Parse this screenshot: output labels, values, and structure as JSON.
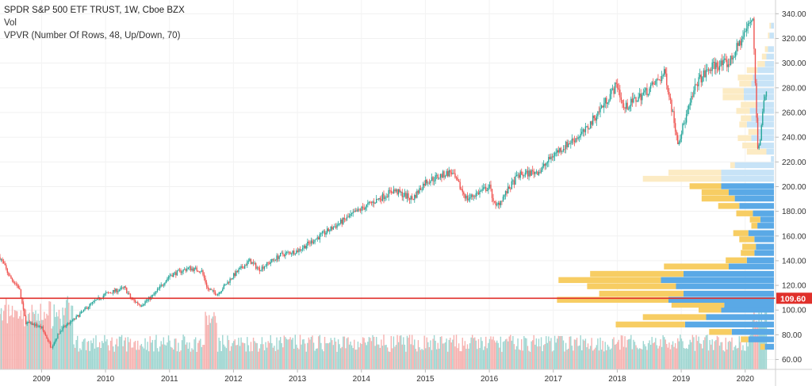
{
  "legend": {
    "title": "SPDR S&P 500 ETF TRUST, 1W, Cboe BZX",
    "volume": "Vol",
    "vpvr": "VPVR (Number Of Rows, 48, Up/Down, 70)"
  },
  "colors": {
    "up": "#26a69a",
    "down": "#ef5350",
    "vol_up": "#9fd6d1",
    "vol_down": "#f6b2b0",
    "vpvr_up": "#5aa9e6",
    "vpvr_down": "#f7cd63",
    "vpvr_up_light": "#c7e3f7",
    "vpvr_down_light": "#fcebc4",
    "price_line": "#e0302b"
  },
  "price_line": {
    "value": 109.6,
    "label": "109.60"
  },
  "chart_data": {
    "type": "candlestick",
    "title": "SPDR S&P 500 ETF TRUST, 1W, Cboe BZX",
    "y_ticks": [
      60,
      80,
      100,
      120,
      140,
      160,
      180,
      200,
      220,
      240,
      260,
      280,
      300,
      320,
      340
    ],
    "y_tick_labels": [
      "60.00",
      "80.00",
      "100.00",
      "120.00",
      "140.00",
      "160.00",
      "180.00",
      "200.00",
      "220.00",
      "240.00",
      "260.00",
      "280.00",
      "300.00",
      "320.00",
      "340.00"
    ],
    "x_ticks": [
      "2009",
      "2010",
      "2011",
      "2012",
      "2013",
      "2014",
      "2015",
      "2016",
      "2017",
      "2018",
      "2019",
      "2020"
    ],
    "x_range": [
      2008.35,
      2020.35
    ],
    "ylim": [
      52,
      346
    ],
    "price_path": [
      [
        2008.35,
        143
      ],
      [
        2008.5,
        127
      ],
      [
        2008.65,
        118
      ],
      [
        2008.75,
        90
      ],
      [
        2008.9,
        88
      ],
      [
        2009.0,
        86
      ],
      [
        2009.15,
        70
      ],
      [
        2009.3,
        84
      ],
      [
        2009.5,
        92
      ],
      [
        2009.75,
        104
      ],
      [
        2010.0,
        113
      ],
      [
        2010.3,
        118
      ],
      [
        2010.4,
        109
      ],
      [
        2010.55,
        104
      ],
      [
        2010.75,
        112
      ],
      [
        2011.0,
        128
      ],
      [
        2011.3,
        134
      ],
      [
        2011.5,
        132
      ],
      [
        2011.6,
        117
      ],
      [
        2011.75,
        113
      ],
      [
        2012.0,
        128
      ],
      [
        2012.25,
        140
      ],
      [
        2012.4,
        133
      ],
      [
        2012.75,
        145
      ],
      [
        2013.0,
        148
      ],
      [
        2013.5,
        165
      ],
      [
        2014.0,
        182
      ],
      [
        2014.5,
        197
      ],
      [
        2014.8,
        190
      ],
      [
        2015.0,
        204
      ],
      [
        2015.4,
        212
      ],
      [
        2015.65,
        190
      ],
      [
        2016.0,
        200
      ],
      [
        2016.1,
        183
      ],
      [
        2016.45,
        209
      ],
      [
        2016.8,
        213
      ],
      [
        2017.0,
        226
      ],
      [
        2017.5,
        245
      ],
      [
        2018.0,
        283
      ],
      [
        2018.1,
        263
      ],
      [
        2018.5,
        279
      ],
      [
        2018.75,
        292
      ],
      [
        2018.95,
        236
      ],
      [
        2019.25,
        285
      ],
      [
        2019.5,
        298
      ],
      [
        2019.75,
        300
      ],
      [
        2020.0,
        325
      ],
      [
        2020.12,
        338
      ],
      [
        2020.2,
        225
      ],
      [
        2020.3,
        270
      ],
      [
        2020.35,
        286
      ]
    ],
    "vpvr_rows": [
      {
        "price": 60,
        "up": 0,
        "down": 0
      },
      {
        "price": 70,
        "up": 12,
        "down": 6
      },
      {
        "price": 76,
        "up": 34,
        "down": 10
      },
      {
        "price": 82,
        "up": 56,
        "down": 30
      },
      {
        "price": 88,
        "up": 118,
        "down": 92
      },
      {
        "price": 94,
        "up": 90,
        "down": 84
      },
      {
        "price": 100,
        "up": 70,
        "down": 30
      },
      {
        "price": 104,
        "up": 66,
        "down": 70
      },
      {
        "price": 108,
        "up": 140,
        "down": 148
      },
      {
        "price": 113,
        "up": 120,
        "down": 112
      },
      {
        "price": 119,
        "up": 130,
        "down": 118
      },
      {
        "price": 124,
        "up": 150,
        "down": 136
      },
      {
        "price": 129,
        "up": 120,
        "down": 124
      },
      {
        "price": 135,
        "up": 60,
        "down": 86
      },
      {
        "price": 140,
        "up": 36,
        "down": 28
      },
      {
        "price": 146,
        "up": 26,
        "down": 18
      },
      {
        "price": 151,
        "up": 24,
        "down": 18
      },
      {
        "price": 157,
        "up": 26,
        "down": 20
      },
      {
        "price": 162,
        "up": 34,
        "down": 20
      },
      {
        "price": 168,
        "up": 22,
        "down": 8
      },
      {
        "price": 173,
        "up": 18,
        "down": 14
      },
      {
        "price": 178,
        "up": 28,
        "down": 22
      },
      {
        "price": 184,
        "up": 46,
        "down": 28
      },
      {
        "price": 190,
        "up": 52,
        "down": 44
      },
      {
        "price": 195,
        "up": 60,
        "down": 36
      },
      {
        "price": 200,
        "up": 70,
        "down": 42
      },
      {
        "price": 206,
        "up": 70,
        "down": 104
      },
      {
        "price": 211,
        "up": 70,
        "down": 70
      },
      {
        "price": 217,
        "up": 52,
        "down": 6
      },
      {
        "price": 222,
        "up": 4,
        "down": 0
      },
      {
        "price": 228,
        "up": 10,
        "down": 26
      },
      {
        "price": 233,
        "up": 22,
        "down": 20
      },
      {
        "price": 239,
        "up": 30,
        "down": 18
      },
      {
        "price": 244,
        "up": 22,
        "down": 12
      },
      {
        "price": 250,
        "up": 36,
        "down": 10
      },
      {
        "price": 255,
        "up": 30,
        "down": 14
      },
      {
        "price": 261,
        "up": 32,
        "down": 18
      },
      {
        "price": 266,
        "up": 24,
        "down": 20
      },
      {
        "price": 272,
        "up": 40,
        "down": 28
      },
      {
        "price": 277,
        "up": 40,
        "down": 28
      },
      {
        "price": 283,
        "up": 30,
        "down": 16
      },
      {
        "price": 288,
        "up": 28,
        "down": 20
      },
      {
        "price": 294,
        "up": 22,
        "down": 14
      },
      {
        "price": 299,
        "up": 12,
        "down": 10
      },
      {
        "price": 305,
        "up": 10,
        "down": 6
      },
      {
        "price": 311,
        "up": 8,
        "down": 4
      },
      {
        "price": 322,
        "up": 6,
        "down": 2
      },
      {
        "price": 330,
        "up": 4,
        "down": 2
      }
    ]
  }
}
